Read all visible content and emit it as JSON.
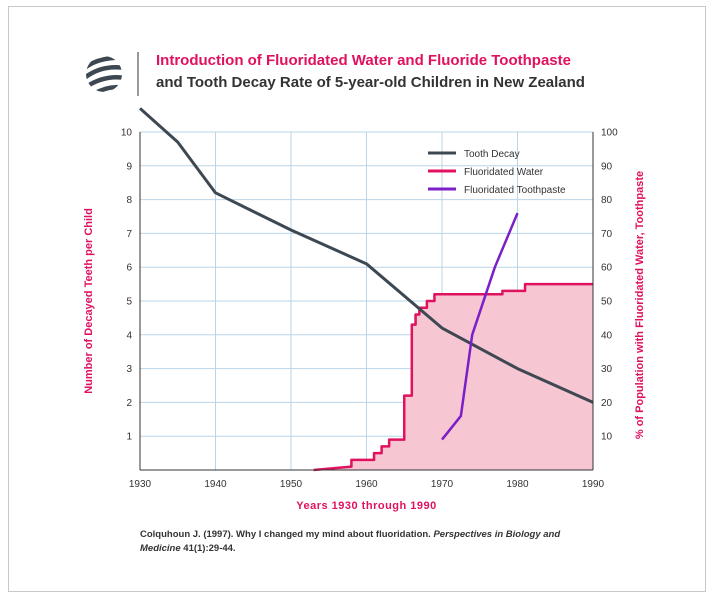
{
  "header": {
    "title_line1": "Introduction of Fluoridated Water and Fluoride Toothpaste",
    "title_line2": "and Tooth Decay Rate of 5-year-old Children in New Zealand"
  },
  "citation": {
    "text_a": "Colquhoun J. (1997). Why I changed my mind about fluoridation. ",
    "journal": "Perspectives in Biology and Medicine",
    "text_b": " 41(1):29-44."
  },
  "colors": {
    "decay": "#3d4852",
    "water": "#e0115f",
    "water_fill": "#f7c6d3",
    "toothpaste": "#7b1fc8",
    "grid": "#b9d5ea",
    "axis_label": "#e0115f"
  },
  "chart_data": {
    "type": "line",
    "xlabel": "Years 1930 through 1990",
    "ylabel_left": "Number of Decayed Teeth per Child",
    "ylabel_right": "% of Population with Fluoridated Water, Toothpaste",
    "xlim": [
      1930,
      1990
    ],
    "ylim_left": [
      0,
      10
    ],
    "ylim_right": [
      0,
      100
    ],
    "x_ticks": [
      1930,
      1940,
      1950,
      1960,
      1970,
      1980,
      1990
    ],
    "y_ticks_left": [
      1,
      2,
      3,
      4,
      5,
      6,
      7,
      8,
      9,
      10
    ],
    "y_ticks_right": [
      10,
      20,
      30,
      40,
      50,
      60,
      70,
      80,
      90,
      100
    ],
    "legend_position": "top-right",
    "series": [
      {
        "name": "Tooth Decay",
        "axis": "left",
        "x": [
          1930,
          1935,
          1940,
          1950,
          1960,
          1970,
          1980,
          1990
        ],
        "y": [
          10.7,
          9.7,
          8.2,
          7.1,
          6.1,
          4.2,
          3.0,
          2.0
        ]
      },
      {
        "name": "Fluoridated Water",
        "axis": "right",
        "x": [
          1953,
          1958,
          1958,
          1961,
          1961,
          1962,
          1962,
          1963,
          1963,
          1965,
          1965,
          1966,
          1966,
          1966.5,
          1966.5,
          1967,
          1967,
          1968,
          1968,
          1969,
          1969,
          1978,
          1978,
          1981,
          1981,
          1990
        ],
        "y": [
          0,
          1,
          3,
          3,
          5,
          5,
          7,
          7,
          9,
          9,
          22,
          22,
          43,
          43,
          46,
          46,
          48,
          48,
          50,
          50,
          52,
          52,
          53,
          53,
          55,
          55
        ]
      },
      {
        "name": "Fluoridated Toothpaste",
        "axis": "right",
        "x": [
          1970,
          1972.5,
          1974,
          1977,
          1980
        ],
        "y": [
          9,
          16,
          40,
          60,
          76
        ]
      }
    ]
  }
}
